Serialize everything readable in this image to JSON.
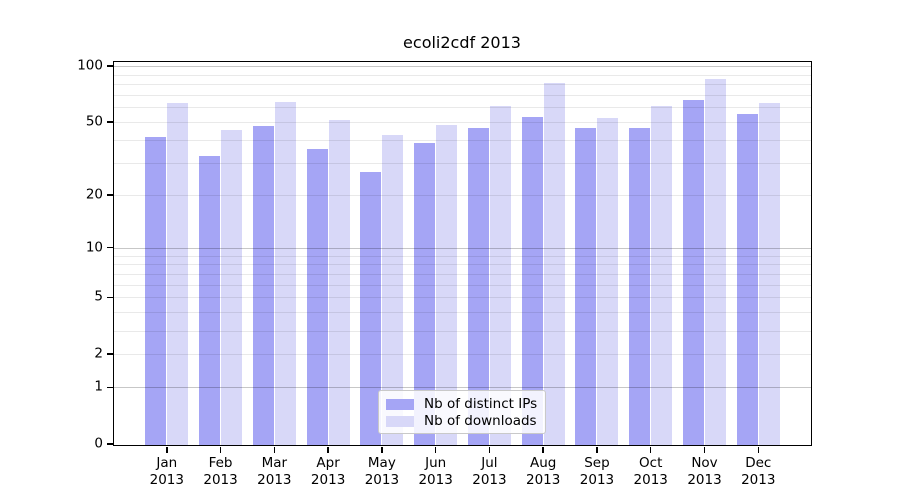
{
  "title": "ecoli2cdf 2013",
  "legend": {
    "items": [
      {
        "label": "Nb of distinct IPs",
        "color": "#a5a5f5"
      },
      {
        "label": "Nb of downloads",
        "color": "#d8d8f8"
      }
    ],
    "position": "lower center"
  },
  "colors": {
    "distinct_ips_bar": "#a5a5f5",
    "downloads_bar": "#d8d8f8",
    "axis": "#000000",
    "grid_minor": "#e9e9e9",
    "grid_major": "#c9c9c9",
    "background": "#ffffff"
  },
  "chart_data": {
    "type": "bar",
    "title": "ecoli2cdf 2013",
    "xlabel": "",
    "ylabel": "",
    "categories": [
      "Jan 2013",
      "Feb 2013",
      "Mar 2013",
      "Apr 2013",
      "May 2013",
      "Jun 2013",
      "Jul 2013",
      "Aug 2013",
      "Sep 2013",
      "Oct 2013",
      "Nov 2013",
      "Dec 2013"
    ],
    "x_tick_labels_line1": [
      "Jan",
      "Feb",
      "Mar",
      "Apr",
      "May",
      "Jun",
      "Jul",
      "Aug",
      "Sep",
      "Oct",
      "Nov",
      "Dec"
    ],
    "x_tick_labels_line2": [
      "2013",
      "2013",
      "2013",
      "2013",
      "2013",
      "2013",
      "2013",
      "2013",
      "2013",
      "2013",
      "2013",
      "2013"
    ],
    "series": [
      {
        "name": "Nb of distinct IPs",
        "color": "#a5a5f5",
        "values": [
          42,
          33,
          48,
          36,
          27,
          39,
          47,
          54,
          47,
          47,
          67,
          56
        ]
      },
      {
        "name": "Nb of downloads",
        "color": "#d8d8f8",
        "values": [
          64,
          46,
          65,
          52,
          43,
          49,
          62,
          82,
          53,
          62,
          86,
          64
        ]
      }
    ],
    "y_scale": "log10(1+y)",
    "y_ticks": [
      0,
      1,
      2,
      5,
      10,
      20,
      50,
      100
    ],
    "ylim": [
      0,
      105
    ],
    "grid": {
      "minor_lines": [
        2,
        3,
        4,
        5,
        6,
        7,
        8,
        9,
        20,
        30,
        40,
        50,
        60,
        70,
        80,
        90
      ],
      "major_lines": [
        1,
        10,
        100
      ]
    },
    "legend_position": "lower center",
    "grid_on": true
  }
}
